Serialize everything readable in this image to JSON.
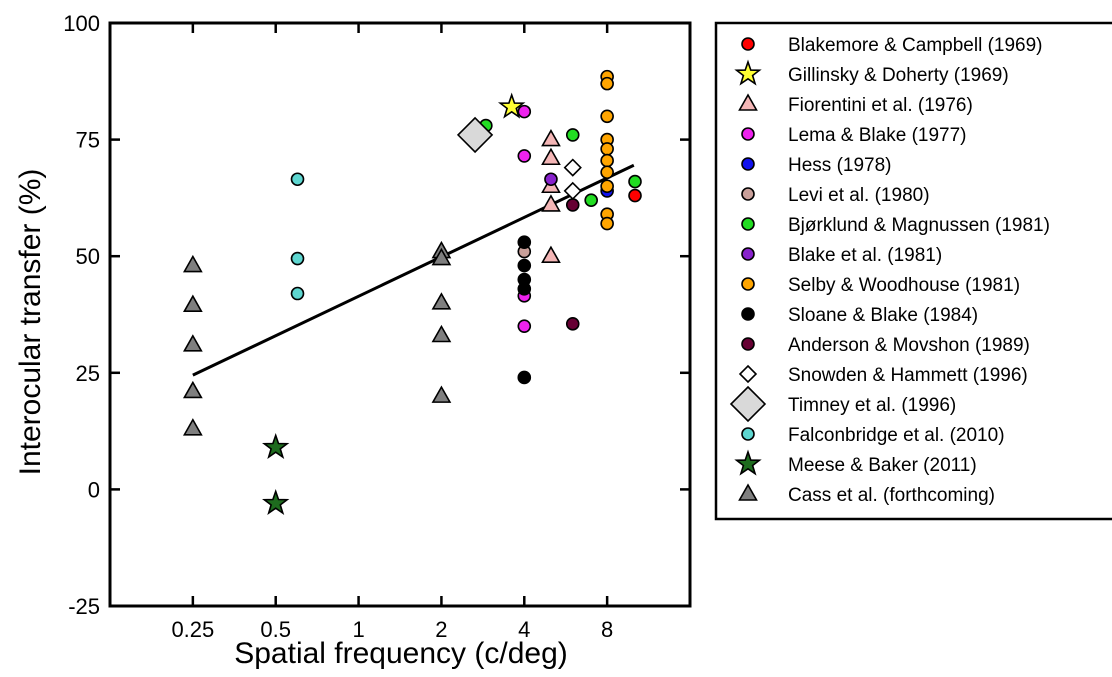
{
  "chart_data": {
    "type": "scatter",
    "title": "",
    "xlabel": "Spatial frequency (c/deg)",
    "ylabel": "Interocular transfer (%)",
    "x_scale": "log2",
    "xlim": [
      0.125,
      16
    ],
    "ylim": [
      -25,
      100
    ],
    "x_ticks": [
      0.25,
      0.5,
      1,
      2,
      4,
      8
    ],
    "x_tick_labels": [
      "0.25",
      "0.5",
      "1",
      "2",
      "4",
      "8"
    ],
    "y_ticks": [
      -25,
      0,
      25,
      50,
      75,
      100
    ],
    "y_tick_labels": [
      "-25",
      "0",
      "25",
      "50",
      "75",
      "100"
    ],
    "grid": false,
    "legend_position": "outside right",
    "trend_line": {
      "x": [
        0.25,
        10
      ],
      "y": [
        24.5,
        69.5
      ]
    },
    "series": [
      {
        "name": "Blakemore & Campbell (1969)",
        "marker": "circle",
        "color": "#ff0000",
        "points": [
          [
            10.1,
            63
          ]
        ]
      },
      {
        "name": "Gillinsky & Doherty (1969)",
        "marker": "star",
        "color": "#ffff33",
        "points": [
          [
            3.6,
            82
          ]
        ]
      },
      {
        "name": "Fiorentini et al. (1976)",
        "marker": "triangle",
        "color": "#f4b6b6",
        "points": [
          [
            5,
            50
          ],
          [
            5,
            61
          ],
          [
            5,
            65
          ],
          [
            5,
            71
          ],
          [
            5,
            75
          ]
        ]
      },
      {
        "name": "Lema & Blake (1977)",
        "marker": "circle",
        "color": "#ee22ee",
        "points": [
          [
            4,
            81
          ],
          [
            4,
            71.5
          ],
          [
            4,
            41.5
          ],
          [
            4,
            35
          ]
        ]
      },
      {
        "name": "Hess (1978)",
        "marker": "circle",
        "color": "#1111ee",
        "points": [
          [
            8,
            64
          ]
        ]
      },
      {
        "name": "Levi et al. (1980)",
        "marker": "circle",
        "color": "#c9a09a",
        "points": [
          [
            4,
            51
          ]
        ]
      },
      {
        "name": "Bjørklund & Magnussen (1981)",
        "marker": "circle",
        "color": "#22dd22",
        "points": [
          [
            2.9,
            78
          ],
          [
            6,
            76
          ],
          [
            7,
            62
          ],
          [
            10.1,
            66
          ]
        ]
      },
      {
        "name": "Blake et al. (1981)",
        "marker": "circle",
        "color": "#8822cc",
        "points": [
          [
            5,
            66.5
          ]
        ]
      },
      {
        "name": "Selby & Woodhouse (1981)",
        "marker": "circle",
        "color": "#ffa500",
        "points": [
          [
            8,
            88.5
          ],
          [
            8,
            87
          ],
          [
            8,
            80
          ],
          [
            8,
            75
          ],
          [
            8,
            73
          ],
          [
            8,
            70.5
          ],
          [
            8,
            68
          ],
          [
            8,
            65
          ],
          [
            8,
            59
          ],
          [
            8,
            57
          ]
        ]
      },
      {
        "name": "Sloane & Blake (1984)",
        "marker": "circle",
        "color": "#000000",
        "points": [
          [
            4,
            53
          ],
          [
            4,
            48
          ],
          [
            4,
            45
          ],
          [
            4,
            43
          ],
          [
            4,
            24
          ]
        ]
      },
      {
        "name": "Anderson & Movshon (1989)",
        "marker": "circle",
        "color": "#660033",
        "points": [
          [
            6,
            61
          ],
          [
            6,
            35.5
          ]
        ]
      },
      {
        "name": "Snowden & Hammett (1996)",
        "marker": "diamond",
        "color": "#ffffff",
        "points": [
          [
            6,
            69
          ],
          [
            6,
            64
          ]
        ]
      },
      {
        "name": "Timney et al. (1996)",
        "marker": "diamond-large",
        "color": "#d9d9d9",
        "points": [
          [
            2.65,
            76
          ]
        ]
      },
      {
        "name": "Falconbridge et al. (2010)",
        "marker": "circle",
        "color": "#5ed6d0",
        "points": [
          [
            0.6,
            66.5
          ],
          [
            0.6,
            49.5
          ],
          [
            0.6,
            42
          ]
        ]
      },
      {
        "name": "Meese & Baker (2011)",
        "marker": "star",
        "color": "#1e6b1e",
        "points": [
          [
            0.5,
            9
          ],
          [
            0.5,
            -3
          ]
        ]
      },
      {
        "name": "Cass et al. (forthcoming)",
        "marker": "triangle",
        "color": "#7f7f7f",
        "points": [
          [
            0.25,
            48
          ],
          [
            0.25,
            39.5
          ],
          [
            0.25,
            31
          ],
          [
            0.25,
            21
          ],
          [
            0.25,
            13
          ],
          [
            2,
            51
          ],
          [
            2,
            49.5
          ],
          [
            2,
            40
          ],
          [
            2,
            33
          ],
          [
            2,
            20
          ]
        ]
      }
    ]
  }
}
